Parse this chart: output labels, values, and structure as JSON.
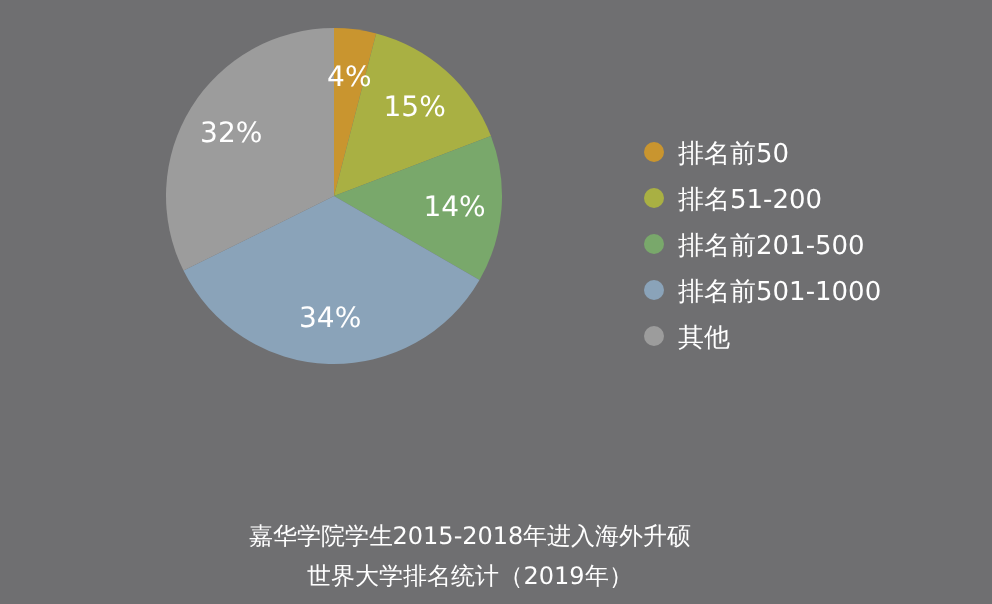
{
  "chart_data": {
    "type": "pie",
    "categories": [
      "排名前50",
      "排名51-200",
      "排名前201-500",
      "排名前501-1000",
      "其他"
    ],
    "values": [
      4,
      15,
      14,
      34,
      32
    ],
    "colors": [
      "#c9952f",
      "#a9b043",
      "#79a86b",
      "#8aa3b9",
      "#9c9c9c"
    ],
    "value_labels": [
      "4%",
      "15%",
      "14%",
      "34%",
      "32%"
    ],
    "legend": "right",
    "title": "嘉华学院学生2015-2018年进入海外升硕",
    "subtitle": "世界大学排名统计（2019年）"
  }
}
